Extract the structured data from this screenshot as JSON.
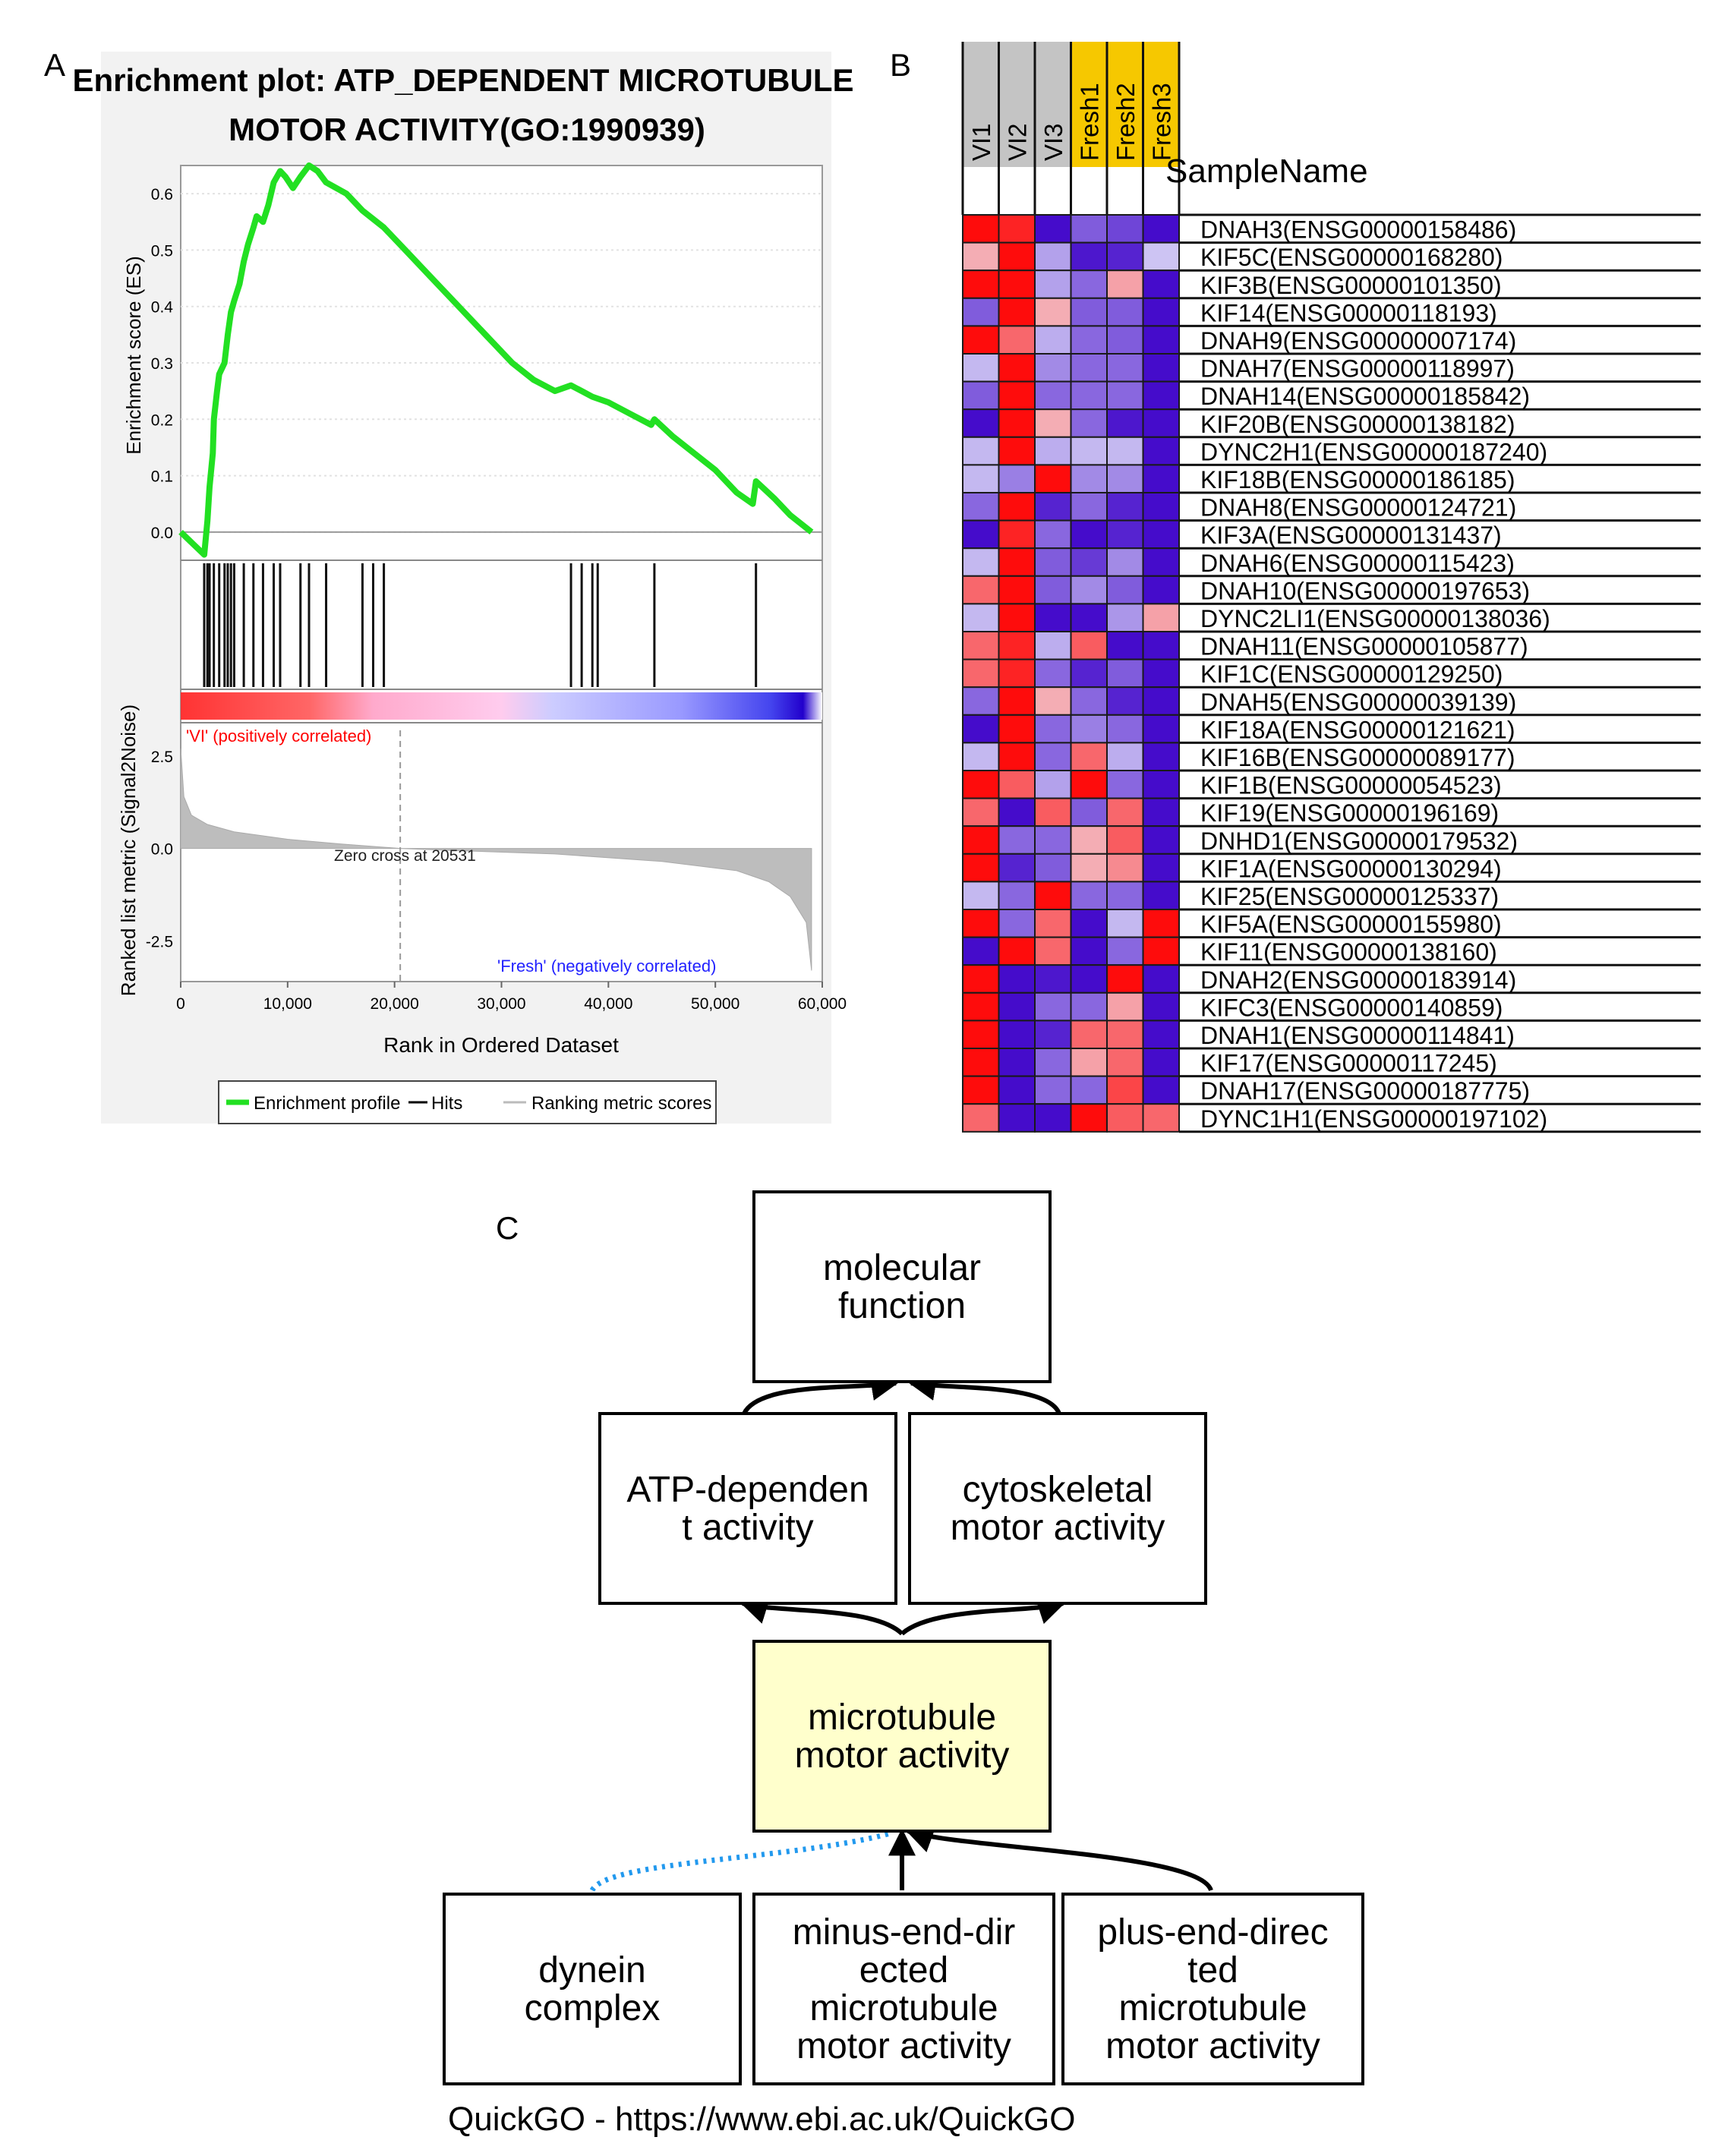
{
  "panels": {
    "a": "A",
    "b": "B",
    "c": "C"
  },
  "gsea": {
    "title_line1": "Enrichment plot: ATP_DEPENDENT MICROTUBULE",
    "title_line2": "MOTOR ACTIVITY(GO:1990939)",
    "es_ylabel": "Enrichment score (ES)",
    "rank_ylabel": "Ranked list metric (Signal2Noise)",
    "xlabel": "Rank in Ordered Dataset",
    "pos_label": "'VI' (positively correlated)",
    "neg_label": "'Fresh' (negatively correlated)",
    "zero_cross": "Zero cross at 20531",
    "legend": {
      "profile": "Enrichment profile",
      "hits": "Hits",
      "metric": "Ranking metric scores"
    },
    "colors": {
      "profile": "#22e022",
      "hits": "#000000",
      "metric": "#bbbbbb",
      "pos_label": "#ff0000",
      "neg_label": "#2222ff"
    }
  },
  "chart_data": [
    {
      "type": "line",
      "name": "enrichment-profile",
      "xlim": [
        0,
        60000
      ],
      "ylim": [
        -0.05,
        0.65
      ],
      "xticks": [
        0,
        10000,
        20000,
        30000,
        40000,
        50000,
        60000
      ],
      "xtick_labels": [
        "0",
        "10,000",
        "20,000",
        "30,000",
        "40,000",
        "50,000",
        "60,000"
      ],
      "yticks": [
        0.0,
        0.1,
        0.2,
        0.3,
        0.4,
        0.5,
        0.6
      ],
      "ytick_labels": [
        "0.0",
        "0.1",
        "0.2",
        "0.3",
        "0.4",
        "0.5",
        "0.6"
      ],
      "x": [
        0,
        2200,
        2500,
        2700,
        3000,
        3100,
        3400,
        3600,
        4100,
        4400,
        4700,
        5000,
        5500,
        5900,
        6300,
        6800,
        7100,
        7700,
        8200,
        8700,
        9300,
        9800,
        10500,
        11200,
        12000,
        12800,
        13600,
        15500,
        17000,
        19000,
        21000,
        23000,
        25000,
        27000,
        29000,
        31000,
        33000,
        35000,
        36500,
        37500,
        38500,
        40000,
        42000,
        44000,
        44300,
        46000,
        48000,
        50000,
        52000,
        53500,
        53800,
        55500,
        57000,
        59000
      ],
      "y": [
        0.0,
        -0.04,
        0.02,
        0.08,
        0.14,
        0.2,
        0.25,
        0.28,
        0.3,
        0.35,
        0.39,
        0.41,
        0.44,
        0.48,
        0.51,
        0.54,
        0.56,
        0.55,
        0.58,
        0.62,
        0.64,
        0.63,
        0.61,
        0.63,
        0.65,
        0.64,
        0.62,
        0.6,
        0.57,
        0.54,
        0.5,
        0.46,
        0.42,
        0.38,
        0.34,
        0.3,
        0.27,
        0.25,
        0.26,
        0.25,
        0.24,
        0.23,
        0.21,
        0.19,
        0.2,
        0.17,
        0.14,
        0.11,
        0.07,
        0.05,
        0.09,
        0.06,
        0.03,
        0.0
      ]
    },
    {
      "type": "hits",
      "name": "gene-set-hits",
      "x": [
        2200,
        2500,
        2700,
        3100,
        3600,
        4100,
        4400,
        4700,
        5000,
        5900,
        6800,
        7700,
        8700,
        9300,
        11200,
        12000,
        13600,
        17000,
        18000,
        19000,
        36500,
        37500,
        38500,
        39000,
        44300,
        53800
      ]
    },
    {
      "type": "area",
      "name": "ranking-metric",
      "xlim": [
        0,
        60000
      ],
      "ylim": [
        -3.6,
        3.4
      ],
      "yticks": [
        2.5,
        0.0,
        -2.5
      ],
      "ytick_labels": [
        "2.5",
        "0.0",
        "-2.5"
      ],
      "x": [
        0,
        300,
        1000,
        2500,
        5000,
        10000,
        15000,
        20531,
        25000,
        35000,
        45000,
        52000,
        55000,
        57000,
        58500,
        59000
      ],
      "y": [
        2.7,
        1.4,
        0.9,
        0.65,
        0.45,
        0.25,
        0.12,
        0.0,
        -0.05,
        -0.15,
        -0.35,
        -0.6,
        -0.9,
        -1.3,
        -2.0,
        -3.3
      ]
    },
    {
      "type": "heatmap",
      "name": "gene-expression-heatmap",
      "title": "SampleName",
      "columns": [
        "VI1",
        "VI2",
        "VI3",
        "Fresh1",
        "Fresh2",
        "Fresh3"
      ],
      "column_groups": [
        "VI",
        "VI",
        "VI",
        "Fresh",
        "Fresh",
        "Fresh"
      ],
      "group_colors": {
        "VI": "#c4c4c4",
        "Fresh": "#f6c800"
      },
      "rows": [
        "DNAH3(ENSG00000158486)",
        "KIF5C(ENSG00000168280)",
        "KIF3B(ENSG00000101350)",
        "KIF14(ENSG00000118193)",
        "DNAH9(ENSG00000007174)",
        "DNAH7(ENSG00000118997)",
        "DNAH14(ENSG00000185842)",
        "KIF20B(ENSG00000138182)",
        "DYNC2H1(ENSG00000187240)",
        "KIF18B(ENSG00000186185)",
        "DNAH8(ENSG00000124721)",
        "KIF3A(ENSG00000131437)",
        "DNAH6(ENSG00000115423)",
        "DNAH10(ENSG00000197653)",
        "DYNC2LI1(ENSG00000138036)",
        "DNAH11(ENSG00000105877)",
        "KIF1C(ENSG00000129250)",
        "DNAH5(ENSG00000039139)",
        "KIF18A(ENSG00000121621)",
        "KIF16B(ENSG00000089177)",
        "KIF1B(ENSG00000054523)",
        "KIF19(ENSG00000196169)",
        "DNHD1(ENSG00000179532)",
        "KIF1A(ENSG00000130294)",
        "KIF25(ENSG00000125337)",
        "KIF5A(ENSG00000155980)",
        "KIF11(ENSG00000138160)",
        "DNAH2(ENSG00000183914)",
        "KIFC3(ENSG00000140859)",
        "DNAH1(ENSG00000114841)",
        "KIF17(ENSG00000117245)",
        "DNAH17(ENSG00000187775)",
        "DYNC1H1(ENSG00000197102)"
      ],
      "values": [
        [
          0.95,
          0.85,
          -0.95,
          -0.6,
          -0.7,
          -0.95
        ],
        [
          0.25,
          0.95,
          -0.3,
          -0.9,
          -0.85,
          -0.15
        ],
        [
          0.95,
          0.95,
          -0.3,
          -0.55,
          0.3,
          -0.95
        ],
        [
          -0.6,
          0.95,
          0.25,
          -0.6,
          -0.6,
          -0.95
        ],
        [
          0.95,
          0.55,
          -0.25,
          -0.55,
          -0.6,
          -0.95
        ],
        [
          -0.2,
          0.95,
          -0.4,
          -0.55,
          -0.55,
          -0.95
        ],
        [
          -0.6,
          0.95,
          -0.55,
          -0.55,
          -0.55,
          -0.95
        ],
        [
          -0.95,
          0.95,
          0.25,
          -0.55,
          -0.9,
          -0.95
        ],
        [
          -0.2,
          0.95,
          -0.25,
          -0.2,
          -0.2,
          -0.95
        ],
        [
          -0.2,
          -0.45,
          0.95,
          -0.4,
          -0.4,
          -0.95
        ],
        [
          -0.55,
          0.95,
          -0.85,
          -0.55,
          -0.85,
          -0.95
        ],
        [
          -0.95,
          0.85,
          -0.55,
          -0.95,
          -0.85,
          -0.95
        ],
        [
          -0.2,
          0.95,
          -0.6,
          -0.75,
          -0.4,
          -0.95
        ],
        [
          0.55,
          0.95,
          -0.6,
          -0.4,
          -0.6,
          -0.95
        ],
        [
          -0.2,
          0.95,
          -0.95,
          -0.95,
          -0.35,
          0.3
        ],
        [
          0.55,
          0.85,
          -0.25,
          0.6,
          -0.95,
          -0.95
        ],
        [
          0.55,
          0.85,
          -0.55,
          -0.85,
          -0.6,
          -0.95
        ],
        [
          -0.55,
          0.95,
          0.25,
          -0.55,
          -0.85,
          -0.95
        ],
        [
          -0.95,
          0.95,
          -0.55,
          -0.45,
          -0.55,
          -0.95
        ],
        [
          -0.2,
          0.95,
          -0.55,
          0.55,
          -0.25,
          -0.95
        ],
        [
          0.95,
          0.6,
          -0.3,
          0.95,
          -0.55,
          -0.95
        ],
        [
          0.55,
          -0.95,
          0.6,
          -0.6,
          0.55,
          -0.95
        ],
        [
          0.95,
          -0.55,
          -0.55,
          0.25,
          0.6,
          -0.95
        ],
        [
          0.95,
          -0.85,
          -0.6,
          0.25,
          0.4,
          -0.95
        ],
        [
          -0.2,
          -0.55,
          0.95,
          -0.55,
          -0.55,
          -0.95
        ],
        [
          0.95,
          -0.55,
          0.55,
          -0.95,
          -0.2,
          0.95
        ],
        [
          -0.95,
          0.95,
          0.55,
          -0.95,
          -0.55,
          0.95
        ],
        [
          0.95,
          -0.95,
          -0.9,
          -0.95,
          0.95,
          -0.95
        ],
        [
          0.95,
          -0.95,
          -0.55,
          -0.55,
          0.3,
          -0.95
        ],
        [
          0.95,
          -0.95,
          -0.85,
          0.55,
          0.55,
          -0.95
        ],
        [
          0.95,
          -0.95,
          -0.55,
          0.3,
          0.55,
          -0.95
        ],
        [
          0.95,
          -0.95,
          -0.55,
          -0.55,
          0.7,
          -0.95
        ],
        [
          0.55,
          -0.95,
          -0.95,
          0.95,
          0.6,
          0.55
        ]
      ]
    }
  ],
  "go": {
    "nodes": [
      {
        "id": "molecular-function",
        "lines": [
          "molecular",
          "function"
        ],
        "fill": "#ffffff"
      },
      {
        "id": "atp-dependent-activity",
        "lines": [
          "ATP-dependen",
          "t activity"
        ],
        "fill": "#ffffff"
      },
      {
        "id": "cytoskeletal-motor-activity",
        "lines": [
          "cytoskeletal",
          "motor activity"
        ],
        "fill": "#ffffff"
      },
      {
        "id": "microtubule-motor-activity",
        "lines": [
          "microtubule",
          "motor activity"
        ],
        "fill": "#ffffcc"
      },
      {
        "id": "dynein-complex",
        "lines": [
          "dynein",
          "complex"
        ],
        "fill": "#ffffff"
      },
      {
        "id": "minus-end-directed",
        "lines": [
          "minus-end-dir",
          "ected",
          "microtubule",
          "motor activity"
        ],
        "fill": "#ffffff"
      },
      {
        "id": "plus-end-directed",
        "lines": [
          "plus-end-direc",
          "ted",
          "microtubule",
          "motor activity"
        ],
        "fill": "#ffffff"
      }
    ],
    "edge_colors": {
      "is_a": "#000000",
      "part_of": "#2299ee"
    },
    "footer": "QuickGO - https://www.ebi.ac.uk/QuickGO"
  }
}
